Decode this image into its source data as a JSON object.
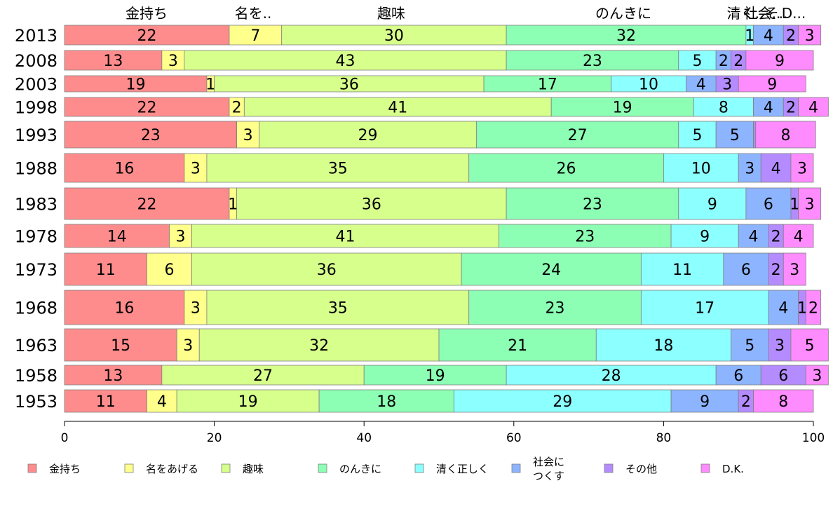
{
  "chart_data": {
    "type": "bar",
    "orientation": "horizontal",
    "stacked": true,
    "categories": [
      "2013",
      "2008",
      "2003",
      "1998",
      "1993",
      "1988",
      "1983",
      "1978",
      "1973",
      "1968",
      "1963",
      "1958",
      "1953"
    ],
    "series": [
      {
        "name": "金持ち",
        "color": "#ff8c8c",
        "values": [
          22,
          13,
          19,
          22,
          23,
          16,
          22,
          14,
          11,
          16,
          15,
          13,
          11
        ]
      },
      {
        "name": "名をあげる",
        "color": "#ffff8c",
        "values": [
          7,
          3,
          1,
          2,
          3,
          3,
          1,
          3,
          6,
          3,
          3,
          0,
          4
        ]
      },
      {
        "name": "趣味",
        "color": "#d7ff8c",
        "values": [
          30,
          43,
          36,
          41,
          29,
          35,
          36,
          41,
          36,
          35,
          32,
          27,
          19
        ]
      },
      {
        "name": "のんきに",
        "color": "#8cffb4",
        "values": [
          32,
          23,
          17,
          19,
          27,
          26,
          23,
          23,
          24,
          23,
          21,
          19,
          18
        ]
      },
      {
        "name": "清く正しく",
        "color": "#8cffff",
        "values": [
          1,
          5,
          10,
          8,
          5,
          10,
          9,
          9,
          11,
          17,
          18,
          28,
          29
        ]
      },
      {
        "name": "社会に つくす",
        "color": "#8cb4ff",
        "values": [
          4,
          2,
          4,
          4,
          5,
          3,
          6,
          4,
          6,
          4,
          5,
          6,
          9
        ]
      },
      {
        "name": "その他",
        "color": "#b48cff",
        "values": [
          2,
          2,
          3,
          2,
          0.3,
          4,
          1,
          2,
          2,
          1,
          3,
          6,
          2
        ]
      },
      {
        "name": "D.K.",
        "color": "#ff8cff",
        "values": [
          3,
          9,
          9,
          4,
          8,
          3,
          3,
          4,
          3,
          2,
          5,
          3,
          8
        ]
      }
    ],
    "segment_labels": [
      [
        "22",
        "7",
        "30",
        "32",
        "1",
        "4",
        "2",
        "3"
      ],
      [
        "13",
        "3",
        "43",
        "23",
        "5",
        "2",
        "2",
        "9"
      ],
      [
        "19",
        "1",
        "36",
        "17",
        "10",
        "4",
        "3",
        "9"
      ],
      [
        "22",
        "2",
        "41",
        "19",
        "8",
        "4",
        "2",
        "4"
      ],
      [
        "23",
        "3",
        "29",
        "27",
        "5",
        "5",
        "",
        "8"
      ],
      [
        "16",
        "3",
        "35",
        "26",
        "10",
        "3",
        "4",
        "3"
      ],
      [
        "22",
        "1",
        "36",
        "23",
        "9",
        "6",
        "1",
        "3"
      ],
      [
        "14",
        "3",
        "41",
        "23",
        "9",
        "4",
        "2",
        "4"
      ],
      [
        "11",
        "6",
        "36",
        "24",
        "11",
        "6",
        "2",
        "3"
      ],
      [
        "16",
        "3",
        "35",
        "23",
        "17",
        "4",
        "1",
        "2"
      ],
      [
        "15",
        "3",
        "32",
        "21",
        "18",
        "5",
        "3",
        "5"
      ],
      [
        "13",
        "",
        "27",
        "19",
        "28",
        "6",
        "6",
        "3"
      ],
      [
        "11",
        "4",
        "19",
        "18",
        "29",
        "9",
        "2",
        "8"
      ]
    ],
    "top_labels": [
      "金持ち",
      "名を..",
      "趣味",
      "のんきに",
      "清く..",
      "社会..",
      "そ..",
      "D..."
    ],
    "xlim": [
      0,
      100
    ],
    "x_ticks": [
      "0",
      "20",
      "40",
      "60",
      "80",
      "100"
    ],
    "legend_position": "bottom",
    "legend_labels": [
      [
        "金持ち"
      ],
      [
        "名をあげる"
      ],
      [
        "趣味"
      ],
      [
        "のんきに"
      ],
      [
        "清く正しく"
      ],
      [
        "社会に",
        "つくす"
      ],
      [
        "その他"
      ],
      [
        "D.K."
      ]
    ]
  }
}
